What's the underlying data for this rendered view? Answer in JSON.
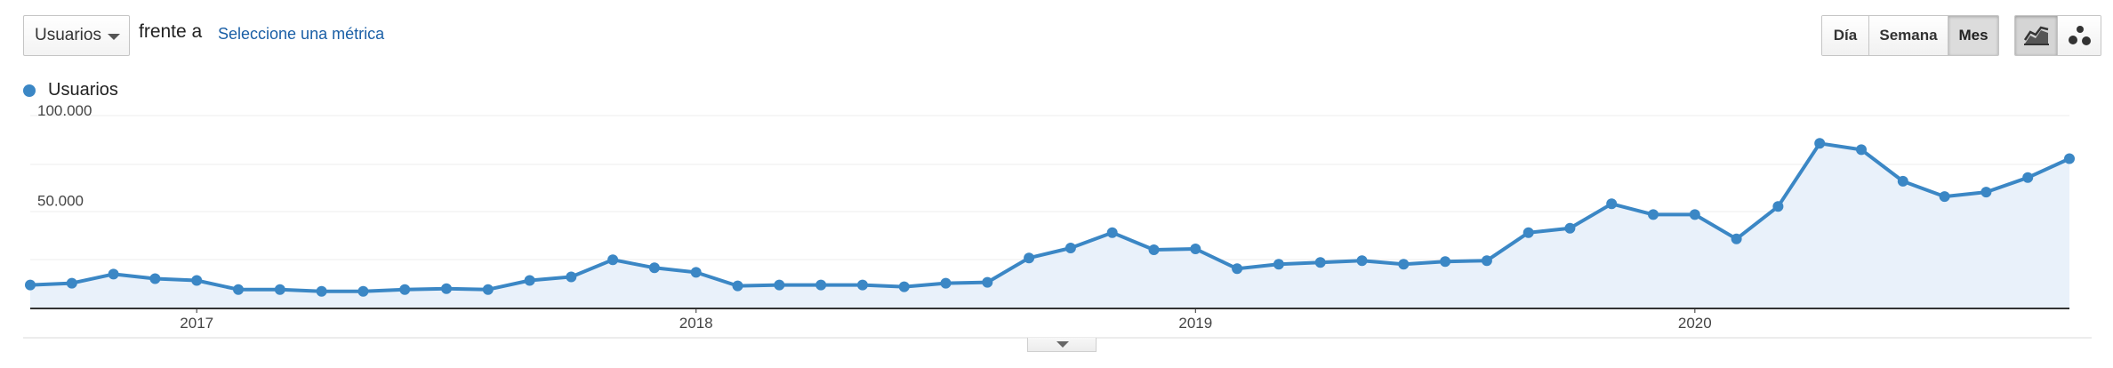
{
  "toolbar": {
    "metric_select": "Usuarios",
    "versus_text": "frente a",
    "select_metric_link": "Seleccione una métrica",
    "period_buttons": [
      {
        "label": "Día",
        "active": false
      },
      {
        "label": "Semana",
        "active": false
      },
      {
        "label": "Mes",
        "active": true
      }
    ],
    "chart_type_buttons": [
      {
        "icon": "line-chart-icon",
        "active": true
      },
      {
        "icon": "motion-chart-icon",
        "active": false
      }
    ]
  },
  "colors": {
    "series": "#3b87c5",
    "fill": "#e9f1fa",
    "grid": "#ececec",
    "axis": "#333333",
    "tick_text": "#444444"
  },
  "chart_data": {
    "type": "area",
    "title": "",
    "xlabel": "",
    "ylabel": "",
    "grid": true,
    "legend_position": "top-left",
    "x_start": "2016-09",
    "x_ticks": [
      "2017",
      "2018",
      "2019",
      "2020"
    ],
    "y_ticks": [
      "50.000",
      "100.000"
    ],
    "ylim": [
      0,
      100000
    ],
    "series": [
      {
        "name": "Usuarios",
        "values": [
          13000,
          14000,
          19000,
          16500,
          15500,
          10500,
          10500,
          9500,
          9500,
          10500,
          11000,
          10500,
          15500,
          17500,
          27000,
          22500,
          20000,
          12500,
          13000,
          13000,
          13000,
          12000,
          14000,
          14500,
          28000,
          33500,
          42000,
          32500,
          33000,
          22000,
          24500,
          25500,
          26500,
          24500,
          26000,
          26500,
          42000,
          44500,
          58000,
          52000,
          52000,
          38500,
          56500,
          91500,
          88000,
          70500,
          62000,
          64500,
          72500,
          83000
        ]
      }
    ]
  },
  "footer": {
    "expand_icon": "chevron-down-icon"
  }
}
